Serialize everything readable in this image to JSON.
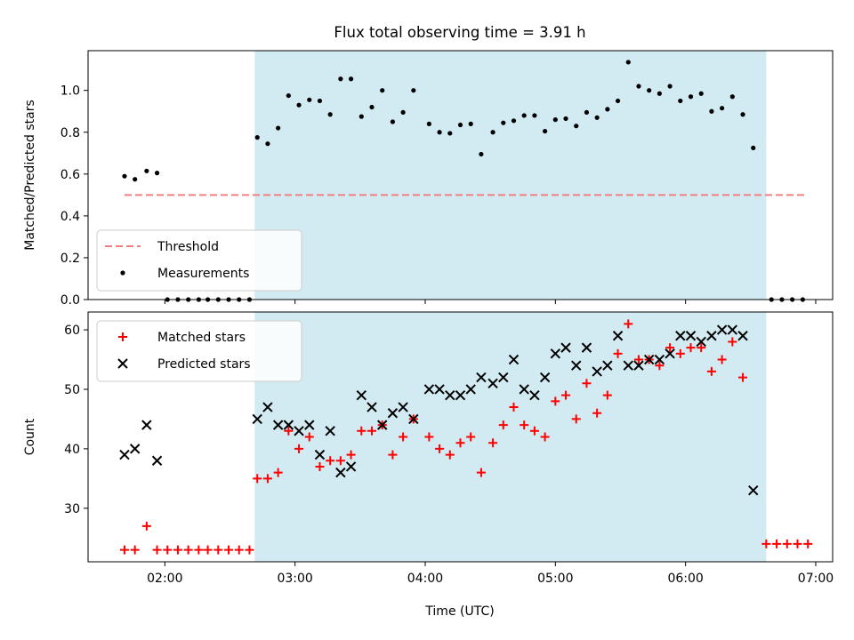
{
  "figure": {
    "title": "Flux total observing time = 3.91 h",
    "xlabel": "Time (UTC)",
    "colors": {
      "band": "#add8e6",
      "threshold": "#f08080",
      "measurements": "#000000",
      "matched": "#ff0000",
      "predicted": "#000000"
    }
  },
  "chart_data": [
    {
      "type": "scatter",
      "panel": "top",
      "ylabel": "Matched/Predicted stars",
      "xlim_hours": [
        1.41,
        7.13
      ],
      "ylim": [
        0,
        1.19
      ],
      "yticks": [
        0.0,
        0.2,
        0.4,
        0.6,
        0.8,
        1.0
      ],
      "ytick_labels": [
        "0.0",
        "0.2",
        "0.4",
        "0.6",
        "0.8",
        "1.0"
      ],
      "xticks_hours": [
        2,
        3,
        4,
        5,
        6,
        7
      ],
      "xtick_labels": [
        "02:00",
        "03:00",
        "04:00",
        "05:00",
        "06:00",
        "07:00"
      ],
      "show_xtick_labels": false,
      "shaded_span_hours": [
        2.69,
        6.62
      ],
      "threshold": {
        "name": "Threshold",
        "y": 0.5,
        "x_range_hours": [
          1.69,
          6.92
        ],
        "style": "dashed"
      },
      "series": [
        {
          "name": "Measurements",
          "marker": "dot",
          "points": [
            [
              1.69,
              0.59
            ],
            [
              1.77,
              0.575
            ],
            [
              1.86,
              0.615
            ],
            [
              1.94,
              0.605
            ],
            [
              2.02,
              0.0
            ],
            [
              2.1,
              0.0
            ],
            [
              2.18,
              0.0
            ],
            [
              2.26,
              0.0
            ],
            [
              2.33,
              0.0
            ],
            [
              2.41,
              0.0
            ],
            [
              2.49,
              0.0
            ],
            [
              2.57,
              0.0
            ],
            [
              2.65,
              0.0
            ],
            [
              2.71,
              0.775
            ],
            [
              2.79,
              0.745
            ],
            [
              2.87,
              0.82
            ],
            [
              2.95,
              0.975
            ],
            [
              3.03,
              0.93
            ],
            [
              3.11,
              0.955
            ],
            [
              3.19,
              0.95
            ],
            [
              3.27,
              0.885
            ],
            [
              3.35,
              1.055
            ],
            [
              3.43,
              1.055
            ],
            [
              3.51,
              0.875
            ],
            [
              3.59,
              0.92
            ],
            [
              3.67,
              1.0
            ],
            [
              3.75,
              0.85
            ],
            [
              3.83,
              0.895
            ],
            [
              3.91,
              1.0
            ],
            [
              4.03,
              0.84
            ],
            [
              4.11,
              0.8
            ],
            [
              4.19,
              0.795
            ],
            [
              4.27,
              0.835
            ],
            [
              4.35,
              0.84
            ],
            [
              4.43,
              0.695
            ],
            [
              4.52,
              0.8
            ],
            [
              4.6,
              0.845
            ],
            [
              4.68,
              0.855
            ],
            [
              4.76,
              0.88
            ],
            [
              4.84,
              0.88
            ],
            [
              4.92,
              0.805
            ],
            [
              5.0,
              0.86
            ],
            [
              5.08,
              0.865
            ],
            [
              5.16,
              0.83
            ],
            [
              5.24,
              0.895
            ],
            [
              5.32,
              0.87
            ],
            [
              5.4,
              0.91
            ],
            [
              5.48,
              0.95
            ],
            [
              5.56,
              1.135
            ],
            [
              5.64,
              1.02
            ],
            [
              5.72,
              1.0
            ],
            [
              5.8,
              0.985
            ],
            [
              5.88,
              1.02
            ],
            [
              5.96,
              0.95
            ],
            [
              6.04,
              0.97
            ],
            [
              6.12,
              0.985
            ],
            [
              6.2,
              0.9
            ],
            [
              6.28,
              0.915
            ],
            [
              6.36,
              0.97
            ],
            [
              6.44,
              0.885
            ],
            [
              6.52,
              0.725
            ],
            [
              6.66,
              0.0
            ],
            [
              6.74,
              0.0
            ],
            [
              6.82,
              0.0
            ],
            [
              6.9,
              0.0
            ]
          ]
        }
      ],
      "legend": {
        "position": "lower-left",
        "entries": [
          "Threshold",
          "Measurements"
        ]
      }
    },
    {
      "type": "scatter",
      "panel": "bottom",
      "ylabel": "Count",
      "xlim_hours": [
        1.41,
        7.13
      ],
      "ylim": [
        21,
        63
      ],
      "yticks": [
        30,
        40,
        50,
        60
      ],
      "ytick_labels": [
        "30",
        "40",
        "50",
        "60"
      ],
      "xticks_hours": [
        2,
        3,
        4,
        5,
        6,
        7
      ],
      "xtick_labels": [
        "02:00",
        "03:00",
        "04:00",
        "05:00",
        "06:00",
        "07:00"
      ],
      "shaded_span_hours": [
        2.69,
        6.62
      ],
      "series": [
        {
          "name": "Matched stars",
          "marker": "plus",
          "points": [
            [
              1.69,
              23
            ],
            [
              1.77,
              23
            ],
            [
              1.86,
              27
            ],
            [
              1.94,
              23
            ],
            [
              2.02,
              23
            ],
            [
              2.1,
              23
            ],
            [
              2.18,
              23
            ],
            [
              2.26,
              23
            ],
            [
              2.33,
              23
            ],
            [
              2.41,
              23
            ],
            [
              2.49,
              23
            ],
            [
              2.57,
              23
            ],
            [
              2.65,
              23
            ],
            [
              2.71,
              35
            ],
            [
              2.79,
              35
            ],
            [
              2.87,
              36
            ],
            [
              2.95,
              43
            ],
            [
              3.03,
              40
            ],
            [
              3.11,
              42
            ],
            [
              3.19,
              37
            ],
            [
              3.27,
              38
            ],
            [
              3.35,
              38
            ],
            [
              3.43,
              39
            ],
            [
              3.51,
              43
            ],
            [
              3.59,
              43
            ],
            [
              3.67,
              44
            ],
            [
              3.75,
              39
            ],
            [
              3.83,
              42
            ],
            [
              3.91,
              45
            ],
            [
              4.03,
              42
            ],
            [
              4.11,
              40
            ],
            [
              4.19,
              39
            ],
            [
              4.27,
              41
            ],
            [
              4.35,
              42
            ],
            [
              4.43,
              36
            ],
            [
              4.52,
              41
            ],
            [
              4.6,
              44
            ],
            [
              4.68,
              47
            ],
            [
              4.76,
              44
            ],
            [
              4.84,
              43
            ],
            [
              4.92,
              42
            ],
            [
              5.0,
              48
            ],
            [
              5.08,
              49
            ],
            [
              5.16,
              45
            ],
            [
              5.24,
              51
            ],
            [
              5.32,
              46
            ],
            [
              5.4,
              49
            ],
            [
              5.48,
              56
            ],
            [
              5.56,
              61
            ],
            [
              5.64,
              55
            ],
            [
              5.72,
              55
            ],
            [
              5.8,
              54
            ],
            [
              5.88,
              57
            ],
            [
              5.96,
              56
            ],
            [
              6.04,
              57
            ],
            [
              6.12,
              57
            ],
            [
              6.2,
              53
            ],
            [
              6.28,
              55
            ],
            [
              6.36,
              58
            ],
            [
              6.44,
              52
            ],
            [
              6.62,
              24
            ],
            [
              6.7,
              24
            ],
            [
              6.78,
              24
            ],
            [
              6.86,
              24
            ],
            [
              6.94,
              24
            ]
          ]
        },
        {
          "name": "Predicted stars",
          "marker": "x",
          "points": [
            [
              1.69,
              39
            ],
            [
              1.77,
              40
            ],
            [
              1.86,
              44
            ],
            [
              1.94,
              38
            ],
            [
              2.71,
              45
            ],
            [
              2.79,
              47
            ],
            [
              2.87,
              44
            ],
            [
              2.95,
              44
            ],
            [
              3.03,
              43
            ],
            [
              3.11,
              44
            ],
            [
              3.19,
              39
            ],
            [
              3.27,
              43
            ],
            [
              3.35,
              36
            ],
            [
              3.43,
              37
            ],
            [
              3.51,
              49
            ],
            [
              3.59,
              47
            ],
            [
              3.67,
              44
            ],
            [
              3.75,
              46
            ],
            [
              3.83,
              47
            ],
            [
              3.91,
              45
            ],
            [
              4.03,
              50
            ],
            [
              4.11,
              50
            ],
            [
              4.19,
              49
            ],
            [
              4.27,
              49
            ],
            [
              4.35,
              50
            ],
            [
              4.43,
              52
            ],
            [
              4.52,
              51
            ],
            [
              4.6,
              52
            ],
            [
              4.68,
              55
            ],
            [
              4.76,
              50
            ],
            [
              4.84,
              49
            ],
            [
              4.92,
              52
            ],
            [
              5.0,
              56
            ],
            [
              5.08,
              57
            ],
            [
              5.16,
              54
            ],
            [
              5.24,
              57
            ],
            [
              5.32,
              53
            ],
            [
              5.4,
              54
            ],
            [
              5.48,
              59
            ],
            [
              5.56,
              54
            ],
            [
              5.64,
              54
            ],
            [
              5.72,
              55
            ],
            [
              5.8,
              55
            ],
            [
              5.88,
              56
            ],
            [
              5.96,
              59
            ],
            [
              6.04,
              59
            ],
            [
              6.12,
              58
            ],
            [
              6.2,
              59
            ],
            [
              6.28,
              60
            ],
            [
              6.36,
              60
            ],
            [
              6.44,
              59
            ],
            [
              6.52,
              33
            ]
          ]
        }
      ],
      "legend": {
        "position": "upper-left",
        "entries": [
          "Matched stars",
          "Predicted stars"
        ]
      }
    }
  ]
}
